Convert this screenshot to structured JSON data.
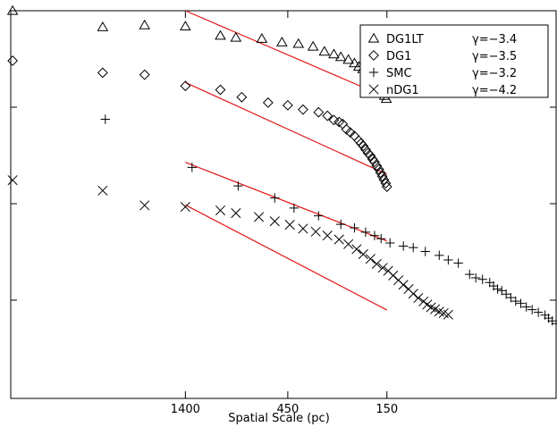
{
  "chart_data": {
    "type": "scatter",
    "xlabel": "Spatial Scale (pc)",
    "x_scale": "log, decreasing to the right",
    "x_tick_labels": [
      "1400",
      "450",
      "150"
    ],
    "x_ticks": [
      1400,
      450,
      150
    ],
    "xlim": [
      9700,
      23
    ],
    "y_ticks": "unlabeled",
    "legend_position": "top-right",
    "fit_line_color": "#e01b1b",
    "marker_color": "#000000",
    "series": [
      {
        "name": "DG1LT",
        "gamma_label": "γ=−3.4",
        "marker": "triangle",
        "points": [
          [
            9500,
            1.0
          ],
          [
            3500,
            0.958
          ],
          [
            2200,
            0.963
          ],
          [
            1400,
            0.96
          ],
          [
            950,
            0.936
          ],
          [
            800,
            0.931
          ],
          [
            600,
            0.928
          ],
          [
            480,
            0.919
          ],
          [
            400,
            0.915
          ],
          [
            340,
            0.908
          ],
          [
            300,
            0.895
          ],
          [
            270,
            0.888
          ],
          [
            250,
            0.881
          ],
          [
            230,
            0.874
          ],
          [
            215,
            0.865
          ],
          [
            205,
            0.856
          ],
          [
            196,
            0.85
          ],
          [
            188,
            0.841
          ],
          [
            182,
            0.834
          ],
          [
            176,
            0.825
          ],
          [
            172,
            0.818
          ],
          [
            167,
            0.811
          ],
          [
            163,
            0.804
          ],
          [
            160,
            0.797
          ],
          [
            157,
            0.79
          ],
          [
            154,
            0.781
          ],
          [
            151,
            0.773
          ]
        ],
        "fit": {
          "x": [
            1400,
            150
          ],
          "y": [
            1.0,
            0.776
          ]
        }
      },
      {
        "name": "DG1",
        "gamma_label": "γ=−3.5",
        "marker": "diamond",
        "points": [
          [
            9500,
            0.871
          ],
          [
            3500,
            0.84
          ],
          [
            2200,
            0.835
          ],
          [
            1400,
            0.806
          ],
          [
            950,
            0.796
          ],
          [
            750,
            0.777
          ],
          [
            560,
            0.763
          ],
          [
            450,
            0.756
          ],
          [
            380,
            0.745
          ],
          [
            320,
            0.738
          ],
          [
            290,
            0.729
          ],
          [
            270,
            0.718
          ],
          [
            255,
            0.713
          ],
          [
            245,
            0.708
          ],
          [
            235,
            0.694
          ],
          [
            225,
            0.686
          ],
          [
            215,
            0.677
          ],
          [
            205,
            0.665
          ],
          [
            200,
            0.658
          ],
          [
            195,
            0.651
          ],
          [
            190,
            0.642
          ],
          [
            185,
            0.633
          ],
          [
            180,
            0.626
          ],
          [
            176,
            0.617
          ],
          [
            172,
            0.61
          ],
          [
            168,
            0.6
          ],
          [
            164,
            0.591
          ],
          [
            161,
            0.582
          ],
          [
            158,
            0.573
          ],
          [
            155,
            0.564
          ],
          [
            152,
            0.555
          ],
          [
            150,
            0.546
          ]
        ],
        "fit": {
          "x": [
            1400,
            150
          ],
          "y": [
            0.815,
            0.578
          ]
        }
      },
      {
        "name": "SMC",
        "gamma_label": "γ=−3.2",
        "marker": "plus",
        "points": [
          [
            3400,
            0.72
          ],
          [
            1300,
            0.596
          ],
          [
            780,
            0.548
          ],
          [
            520,
            0.517
          ],
          [
            420,
            0.491
          ],
          [
            320,
            0.471
          ],
          [
            250,
            0.449
          ],
          [
            215,
            0.44
          ],
          [
            190,
            0.429
          ],
          [
            172,
            0.42
          ],
          [
            160,
            0.412
          ],
          [
            145,
            0.401
          ],
          [
            125,
            0.393
          ],
          [
            112,
            0.389
          ],
          [
            98,
            0.379
          ],
          [
            84,
            0.369
          ],
          [
            76,
            0.357
          ],
          [
            68,
            0.349
          ],
          [
            60,
            0.32
          ],
          [
            56,
            0.311
          ],
          [
            52,
            0.307
          ],
          [
            48,
            0.299
          ],
          [
            46,
            0.29
          ],
          [
            44,
            0.282
          ],
          [
            42,
            0.278
          ],
          [
            40,
            0.269
          ],
          [
            38,
            0.26
          ],
          [
            36,
            0.251
          ],
          [
            34,
            0.245
          ],
          [
            32,
            0.236
          ],
          [
            30,
            0.229
          ],
          [
            28,
            0.222
          ],
          [
            26,
            0.215
          ],
          [
            25,
            0.207
          ],
          [
            24,
            0.2
          ],
          [
            23,
            0.193
          ]
        ],
        "fit": {
          "x": [
            1400,
            150
          ],
          "y": [
            0.609,
            0.406
          ]
        }
      },
      {
        "name": "nDG1",
        "gamma_label": "γ=−4.2",
        "marker": "x",
        "points": [
          [
            9500,
            0.563
          ],
          [
            3500,
            0.536
          ],
          [
            2200,
            0.498
          ],
          [
            1400,
            0.494
          ],
          [
            950,
            0.485
          ],
          [
            800,
            0.478
          ],
          [
            620,
            0.468
          ],
          [
            520,
            0.457
          ],
          [
            440,
            0.448
          ],
          [
            380,
            0.438
          ],
          [
            330,
            0.43
          ],
          [
            290,
            0.42
          ],
          [
            255,
            0.41
          ],
          [
            230,
            0.398
          ],
          [
            210,
            0.385
          ],
          [
            195,
            0.372
          ],
          [
            180,
            0.36
          ],
          [
            168,
            0.347
          ],
          [
            157,
            0.337
          ],
          [
            148,
            0.329
          ],
          [
            140,
            0.317
          ],
          [
            132,
            0.305
          ],
          [
            125,
            0.293
          ],
          [
            118,
            0.282
          ],
          [
            112,
            0.27
          ],
          [
            106,
            0.259
          ],
          [
            100,
            0.25
          ],
          [
            96,
            0.242
          ],
          [
            92,
            0.235
          ],
          [
            88,
            0.23
          ],
          [
            84,
            0.224
          ],
          [
            80,
            0.22
          ],
          [
            76,
            0.216
          ]
        ],
        "fit": {
          "x": [
            1400,
            150
          ],
          "y": [
            0.499,
            0.228
          ]
        }
      }
    ]
  }
}
